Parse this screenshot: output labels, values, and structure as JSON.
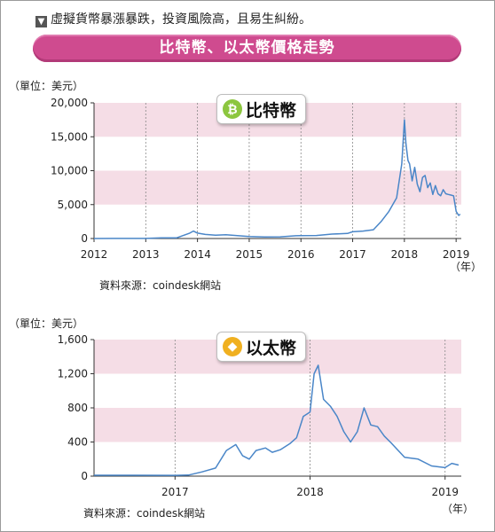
{
  "header": {
    "subtitle": "虛擬貨幣暴漲暴跌，投資風險高，且易生糾紛。",
    "banner_title": "比特幣、以太幣價格走勢"
  },
  "colors": {
    "banner": "#cf4b8f",
    "band": "#f5dde6",
    "line": "#4a86c8",
    "bitcoin_icon": "#8cc63f",
    "ether_icon": "#f0b020"
  },
  "icons": [
    "bitcoin-icon",
    "ether-icon"
  ],
  "chart_data": [
    {
      "type": "line",
      "badge_label": "比特幣",
      "unit_label": "（單位：美元）",
      "year_unit": "（年）",
      "source": "資料來源：coindesk網站",
      "xlim": [
        2012,
        2019.1
      ],
      "ylim": [
        0,
        20000
      ],
      "yticks": [
        "0",
        "5,000",
        "10,000",
        "15,000",
        "20,000"
      ],
      "ytick_values": [
        0,
        5000,
        10000,
        15000,
        20000
      ],
      "xticks": [
        "2012",
        "2013",
        "2014",
        "2015",
        "2016",
        "2017",
        "2018",
        "2019"
      ],
      "xtick_values": [
        2012,
        2013,
        2014,
        2015,
        2016,
        2017,
        2018,
        2019
      ],
      "bands": [
        [
          15000,
          20000
        ],
        [
          5000,
          10000
        ]
      ],
      "grid": false,
      "series": [
        {
          "x": [
            2012.0,
            2012.5,
            2013.0,
            2013.3,
            2013.6,
            2013.85,
            2013.92,
            2014.0,
            2014.15,
            2014.35,
            2014.55,
            2014.8,
            2015.0,
            2015.3,
            2015.6,
            2015.9,
            2016.0,
            2016.3,
            2016.6,
            2016.9,
            2017.0,
            2017.2,
            2017.4,
            2017.55,
            2017.7,
            2017.85,
            2017.95,
            2018.0,
            2018.03,
            2018.07,
            2018.1,
            2018.15,
            2018.2,
            2018.25,
            2018.3,
            2018.35,
            2018.4,
            2018.45,
            2018.5,
            2018.55,
            2018.6,
            2018.65,
            2018.7,
            2018.75,
            2018.8,
            2018.85,
            2018.9,
            2018.95,
            2019.0,
            2019.05,
            2019.08
          ],
          "y": [
            5,
            10,
            13,
            100,
            110,
            800,
            1100,
            800,
            600,
            500,
            550,
            400,
            300,
            240,
            250,
            400,
            430,
            450,
            650,
            750,
            1000,
            1100,
            1300,
            2500,
            4000,
            6000,
            11000,
            17500,
            14000,
            11500,
            11000,
            8500,
            10500,
            8000,
            6900,
            9000,
            9300,
            7500,
            8200,
            6500,
            7800,
            6600,
            6300,
            7200,
            6600,
            6500,
            6400,
            6300,
            4000,
            3400,
            3600
          ]
        }
      ]
    },
    {
      "type": "line",
      "badge_label": "以太幣",
      "unit_label": "（單位：美元）",
      "year_unit": "（年）",
      "source": "資料來源：coindesk網站",
      "xlim": [
        2016.4,
        2019.12
      ],
      "ylim": [
        0,
        1600
      ],
      "yticks": [
        "0",
        "400",
        "800",
        "1,200",
        "1,600"
      ],
      "ytick_values": [
        0,
        400,
        800,
        1200,
        1600
      ],
      "xticks": [
        "2017",
        "2018",
        "2019"
      ],
      "xtick_values": [
        2017,
        2018,
        2019
      ],
      "bands": [
        [
          1200,
          1600
        ],
        [
          400,
          800
        ]
      ],
      "grid": false,
      "series": [
        {
          "x": [
            2016.4,
            2016.7,
            2017.0,
            2017.1,
            2017.2,
            2017.3,
            2017.38,
            2017.45,
            2017.5,
            2017.55,
            2017.6,
            2017.67,
            2017.72,
            2017.78,
            2017.85,
            2017.9,
            2017.95,
            2018.0,
            2018.03,
            2018.06,
            2018.1,
            2018.15,
            2018.2,
            2018.25,
            2018.3,
            2018.35,
            2018.4,
            2018.45,
            2018.5,
            2018.55,
            2018.6,
            2018.7,
            2018.8,
            2018.9,
            2019.0,
            2019.05,
            2019.1
          ],
          "y": [
            10,
            10,
            9,
            12,
            50,
            95,
            300,
            370,
            240,
            200,
            300,
            330,
            280,
            310,
            380,
            450,
            700,
            750,
            1200,
            1300,
            900,
            820,
            700,
            520,
            400,
            520,
            800,
            600,
            580,
            470,
            390,
            220,
            200,
            120,
            100,
            150,
            130
          ]
        }
      ]
    }
  ]
}
